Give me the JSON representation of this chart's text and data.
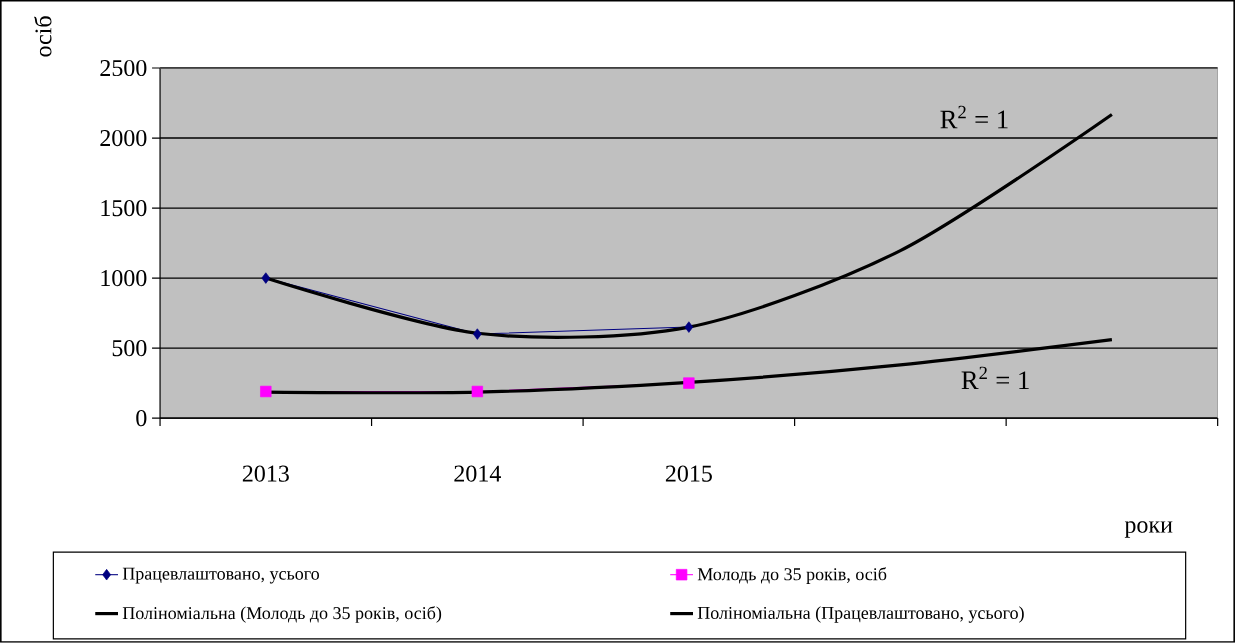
{
  "chart_data": {
    "type": "line",
    "ylabel": "осіб",
    "xlabel": "роки",
    "categories": [
      "2013",
      "2014",
      "2015",
      null,
      null
    ],
    "series": [
      {
        "name": "Працевлаштовано, усього",
        "color": "#000080",
        "marker": "diamond",
        "values": [
          1000,
          600,
          650,
          null,
          null
        ]
      },
      {
        "name": "Молодь до 35 років, осіб",
        "color": "#ff00ff",
        "marker": "square",
        "values": [
          190,
          190,
          250,
          null,
          null
        ]
      },
      {
        "name": "Поліноміальна (Молодь до 35 років, осіб)",
        "color": "#000000",
        "marker": "none",
        "values": [
          186,
          186,
          255,
          380,
          560
        ]
      },
      {
        "name": "Поліноміальна (Працевлаштовано, усього)",
        "color": "#000000",
        "marker": "none",
        "values": [
          1000,
          606,
          650,
          1196,
          2168
        ]
      }
    ],
    "ylim": [
      0,
      2500
    ],
    "yticks": [
      0,
      500,
      1000,
      1500,
      2000,
      2500
    ],
    "grid": "y",
    "legend": "bottom",
    "line_style": "solid",
    "annotations": [
      "R$^{2}$ = 1",
      "R$^{2}$ = 1"
    ]
  }
}
